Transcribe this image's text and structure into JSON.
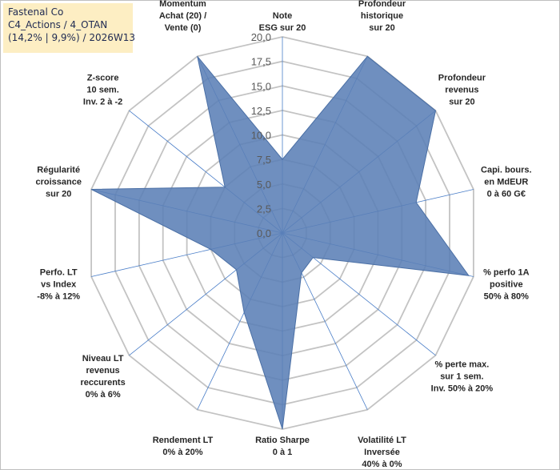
{
  "info": {
    "line1": "Fastenal Co",
    "line2": "C4_Actions / 4_OTAN",
    "line3": "(14,2% | 9,9%) / 2026W13"
  },
  "chart_data": {
    "type": "radar",
    "r_min": 0,
    "r_max": 20,
    "tick_step": 2.5,
    "tick_labels": [
      "0,0",
      "2,5",
      "5,0",
      "7,5",
      "10,0",
      "12,5",
      "15,0",
      "17,5",
      "20,0"
    ],
    "grid": true,
    "colors": {
      "fill": "#5b80b6",
      "stroke": "#4a6fa5",
      "spoke": "#4a7ec8",
      "ring": "#c3c3c3",
      "info_bg": "#fdeec3"
    },
    "axes": [
      {
        "label": [
          "Note",
          "ESG sur 20"
        ],
        "value": 7.5
      },
      {
        "label": [
          "Profondeur",
          "historique",
          "sur 20"
        ],
        "value": 20
      },
      {
        "label": [
          "Profondeur",
          "revenus",
          "sur 20"
        ],
        "value": 20
      },
      {
        "label": [
          "Capi. bours.",
          "en MdEUR",
          "0 à 60 G€"
        ],
        "value": 14
      },
      {
        "label": [
          "% perfo 1A",
          "positive",
          "50% à 80%"
        ],
        "value": 19.5
      },
      {
        "label": [
          "% perte max.",
          "sur 1 sem.",
          "Inv. 50% à 20%"
        ],
        "value": 4
      },
      {
        "label": [
          "Volatilité LT",
          "Inversée",
          "40% à 0%"
        ],
        "value": 4.5
      },
      {
        "label": [
          "Ratio Sharpe",
          "0 à 1"
        ],
        "value": 20
      },
      {
        "label": [
          "Rendement LT",
          "0% à 20%"
        ],
        "value": 9
      },
      {
        "label": [
          "Niveau LT",
          "revenus",
          "reccurents",
          "0% à 6%"
        ],
        "value": 6
      },
      {
        "label": [
          "Perfo. LT",
          "vs Index",
          "-8% à 12%"
        ],
        "value": 7.5
      },
      {
        "label": [
          "Régularité",
          "croissance",
          "sur 20"
        ],
        "value": 20
      },
      {
        "label": [
          "Z-score",
          "10 sem.",
          "Inv. 2 à -2"
        ],
        "value": 7.5
      },
      {
        "label": [
          "Momentum",
          "Achat (20) /",
          "Vente (0)"
        ],
        "value": 20
      }
    ]
  }
}
